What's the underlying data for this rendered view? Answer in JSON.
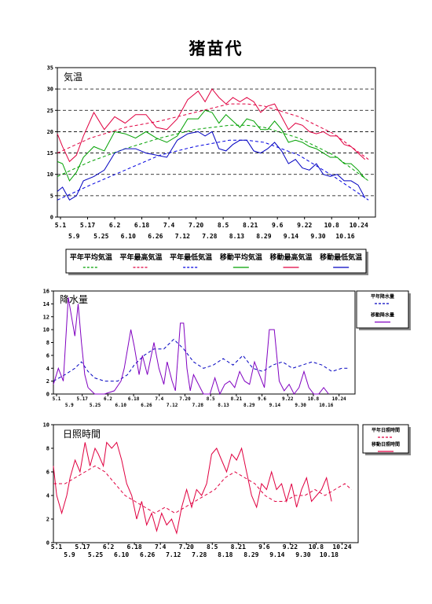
{
  "page": {
    "title": "猪苗代"
  },
  "chart_data": [
    {
      "type": "line",
      "title": "気温",
      "ylim": [
        0,
        35
      ],
      "yticks": [
        0,
        5,
        10,
        15,
        20,
        25,
        30,
        35
      ],
      "x_top": [
        "5.1",
        "5.17",
        "6.2",
        "6.18",
        "7.4",
        "7.20",
        "8.5",
        "8.21",
        "9.6",
        "9.22",
        "10.8",
        "10.24"
      ],
      "x_bottom": [
        "5.9",
        "5.25",
        "6.10",
        "6.26",
        "7.12",
        "7.28",
        "8.13",
        "8.29",
        "9.14",
        "9.30",
        "10.16"
      ],
      "grid": "horizontal dashed",
      "legend_position": "bottom",
      "series": [
        {
          "name": "平年平均気温",
          "color": "#00a000",
          "dash": true,
          "x": [
            1,
            20,
            40,
            60,
            80,
            100,
            110,
            120,
            140,
            160,
            180
          ],
          "y": [
            9.5,
            13,
            16,
            18.5,
            20.5,
            21.5,
            21.5,
            21,
            18.5,
            14.5,
            8.5
          ]
        },
        {
          "name": "平年最高気温",
          "color": "#e00040",
          "dash": true,
          "x": [
            1,
            20,
            40,
            60,
            80,
            100,
            110,
            120,
            140,
            160,
            180
          ],
          "y": [
            15,
            18.5,
            21,
            22.5,
            24.5,
            26.5,
            26.5,
            26,
            23.5,
            19.5,
            13.5
          ]
        },
        {
          "name": "平年最低気温",
          "color": "#0000e0",
          "dash": true,
          "x": [
            1,
            20,
            40,
            60,
            80,
            100,
            110,
            120,
            140,
            160,
            180
          ],
          "y": [
            4,
            7.5,
            11,
            14.5,
            16.5,
            18,
            18,
            17.5,
            14.5,
            9.5,
            4
          ]
        },
        {
          "name": "移動平均気温",
          "color": "#00a000",
          "dash": false,
          "x": [
            1,
            4,
            8,
            12,
            16,
            22,
            28,
            34,
            40,
            46,
            52,
            58,
            64,
            70,
            76,
            82,
            86,
            90,
            94,
            98,
            102,
            106,
            110,
            114,
            118,
            122,
            126,
            130,
            134,
            138,
            142,
            146,
            150,
            154,
            158,
            162,
            166,
            170,
            174,
            178
          ],
          "y": [
            13,
            12.5,
            8.5,
            10.5,
            14,
            16.5,
            15.5,
            20,
            19.5,
            18.5,
            20,
            18.5,
            17.5,
            19,
            23,
            23,
            25,
            24.5,
            22,
            24,
            22.5,
            21,
            23,
            22.5,
            20.5,
            20.5,
            22.5,
            20.5,
            17.5,
            18,
            17.5,
            16.5,
            16,
            15,
            14,
            14,
            12.5,
            12.5,
            11,
            9
          ]
        },
        {
          "name": "移動最高気温",
          "color": "#e00040",
          "dash": false,
          "x": [
            1,
            4,
            8,
            12,
            16,
            22,
            28,
            34,
            40,
            46,
            52,
            58,
            64,
            70,
            76,
            82,
            86,
            90,
            94,
            98,
            102,
            106,
            110,
            114,
            118,
            122,
            126,
            130,
            134,
            138,
            142,
            146,
            150,
            154,
            158,
            162,
            166,
            170,
            174,
            178
          ],
          "y": [
            19.5,
            16.5,
            13,
            14.5,
            19,
            24.5,
            20.5,
            23.5,
            22,
            24,
            24,
            21,
            20.5,
            23,
            27.5,
            29.5,
            27,
            30,
            28,
            26.5,
            28,
            27,
            28,
            27,
            24.5,
            26,
            26.5,
            23.5,
            20.5,
            22,
            21.5,
            20,
            19.5,
            20,
            19,
            19,
            17,
            16.5,
            15,
            13.5
          ]
        },
        {
          "name": "移動最低気温",
          "color": "#0000c0",
          "dash": false,
          "x": [
            1,
            4,
            8,
            12,
            16,
            22,
            28,
            34,
            40,
            46,
            52,
            58,
            64,
            70,
            76,
            82,
            86,
            90,
            94,
            98,
            102,
            106,
            110,
            114,
            118,
            122,
            126,
            130,
            134,
            138,
            142,
            146,
            150,
            154,
            158,
            162,
            166,
            170,
            174,
            178
          ],
          "y": [
            6,
            7,
            4,
            5,
            8.5,
            9.5,
            11,
            15,
            16,
            16,
            15,
            14.5,
            14,
            18,
            19.5,
            20,
            19,
            20,
            16,
            15.5,
            17,
            18,
            18,
            15.5,
            15,
            16,
            17.5,
            15.5,
            12.5,
            13.5,
            11.5,
            11,
            12.5,
            10,
            9.5,
            10,
            8.5,
            8.5,
            7.5,
            4.5
          ]
        }
      ]
    },
    {
      "type": "line",
      "title": "降水量",
      "ylim": [
        0,
        16
      ],
      "yticks": [
        0,
        2,
        4,
        6,
        8,
        10,
        12,
        14,
        16
      ],
      "x_top": [
        "5.1",
        "5.17",
        "6.2",
        "6.18",
        "7.4",
        "7.20",
        "8.5",
        "8.21",
        "9.6",
        "9.22",
        "10.8",
        "10.24"
      ],
      "x_bottom": [
        "5.9",
        "5.25",
        "6.10",
        "6.26",
        "7.12",
        "7.28",
        "8.13",
        "8.29",
        "9.14",
        "9.30",
        "10.16"
      ],
      "grid": "none",
      "legend_position": "right",
      "series": [
        {
          "name": "平年降水量",
          "color": "#0000c0",
          "dash": true,
          "x": [
            1,
            8,
            14,
            18,
            22,
            26,
            32,
            40,
            46,
            50,
            56,
            62,
            68,
            74,
            80,
            86,
            92,
            98,
            104,
            110,
            116,
            122,
            128,
            134,
            140,
            146,
            152,
            158,
            164,
            170,
            176,
            180
          ],
          "y": [
            2,
            3,
            4,
            5,
            3.5,
            2.5,
            2,
            2,
            3,
            4.5,
            6,
            7,
            7,
            8.5,
            7,
            5,
            4,
            4.5,
            5.5,
            4.5,
            6,
            4,
            3.5,
            4.5,
            5,
            4,
            4.5,
            5,
            4.5,
            3.5,
            4,
            4
          ]
        },
        {
          "name": "移動降水量",
          "color": "#8000c0",
          "dash": false,
          "x": [
            1,
            4,
            7,
            10,
            12,
            14,
            16,
            18,
            20,
            22,
            26,
            32,
            38,
            42,
            44,
            46,
            48,
            50,
            53,
            55,
            58,
            60,
            62,
            65,
            68,
            70,
            73,
            75,
            78,
            80,
            82,
            84,
            86,
            88,
            92,
            96,
            99,
            102,
            105,
            108,
            111,
            114,
            117,
            120,
            123,
            126,
            129,
            132,
            135,
            138,
            141,
            144,
            147,
            150,
            153,
            156,
            159,
            162,
            165,
            168
          ],
          "y": [
            1.5,
            4,
            2,
            15,
            12,
            9,
            14,
            8,
            3,
            1,
            0,
            0,
            0.5,
            2,
            4,
            7,
            10,
            7.5,
            3,
            6,
            3,
            5.5,
            8,
            4,
            1.5,
            5,
            2,
            0.5,
            11,
            11,
            4,
            0.5,
            3,
            2,
            0,
            0,
            2.5,
            0,
            1.5,
            2,
            1,
            3.5,
            2,
            1.5,
            5,
            3,
            1,
            10,
            10,
            2,
            0.5,
            1.5,
            0,
            1,
            3.5,
            1,
            0,
            0,
            1,
            0
          ]
        }
      ]
    },
    {
      "type": "line",
      "title": "日照時間",
      "ylim": [
        0,
        10
      ],
      "yticks": [
        0,
        2,
        4,
        6,
        8,
        10
      ],
      "x_top": [
        "5.1",
        "5.17",
        "6.2",
        "6.18",
        "7.4",
        "7.20",
        "8.5",
        "8.21",
        "9.6",
        "9.22",
        "10.8",
        "10.24"
      ],
      "x_bottom": [
        "5.9",
        "5.25",
        "6.10",
        "6.26",
        "7.12",
        "7.28",
        "8.18",
        "8.29",
        "9.14",
        "9.30",
        "10.18"
      ],
      "grid": "none",
      "legend_position": "right",
      "series": [
        {
          "name": "平年日照時間",
          "color": "#e00040",
          "dash": true,
          "x": [
            1,
            8,
            14,
            20,
            26,
            32,
            38,
            44,
            50,
            56,
            62,
            68,
            74,
            80,
            86,
            92,
            98,
            104,
            110,
            116,
            122,
            128,
            134,
            140,
            146,
            152,
            158,
            164,
            170,
            176,
            180
          ],
          "y": [
            5,
            5,
            5.5,
            6,
            6.5,
            6,
            5,
            4,
            3.5,
            3,
            2.5,
            3,
            2.5,
            3,
            3.5,
            4,
            4.5,
            5.5,
            6,
            5.5,
            5,
            4,
            3.5,
            3.5,
            4,
            4,
            4.5,
            4,
            4.5,
            5,
            4.5
          ]
        },
        {
          "name": "移動日照時間",
          "color": "#e00040",
          "dash": false,
          "x": [
            1,
            3,
            6,
            9,
            11,
            14,
            17,
            20,
            23,
            26,
            28,
            31,
            33,
            36,
            39,
            42,
            45,
            48,
            51,
            54,
            57,
            60,
            63,
            66,
            69,
            72,
            75,
            78,
            81,
            84,
            87,
            90,
            93,
            96,
            99,
            102,
            105,
            108,
            111,
            114,
            117,
            120,
            123,
            126,
            129,
            132,
            135,
            138,
            141,
            144,
            147,
            150,
            153,
            156,
            159,
            162,
            165,
            168
          ],
          "y": [
            6.5,
            4,
            2.5,
            4,
            5.5,
            7,
            6,
            8.5,
            6.5,
            8,
            7.5,
            6.5,
            8.5,
            8,
            8.5,
            7,
            5,
            4,
            2,
            3.5,
            1.5,
            2.5,
            1,
            2.5,
            1.5,
            2,
            0.8,
            3,
            4.5,
            3,
            4.5,
            4,
            5,
            7.5,
            8,
            7,
            6,
            7.5,
            7,
            8,
            6,
            4,
            3,
            5,
            4.5,
            6,
            4.5,
            5,
            3.5,
            5,
            3,
            4.5,
            5.5,
            3.5,
            4,
            4.5,
            5.5,
            3.5
          ]
        }
      ]
    }
  ]
}
